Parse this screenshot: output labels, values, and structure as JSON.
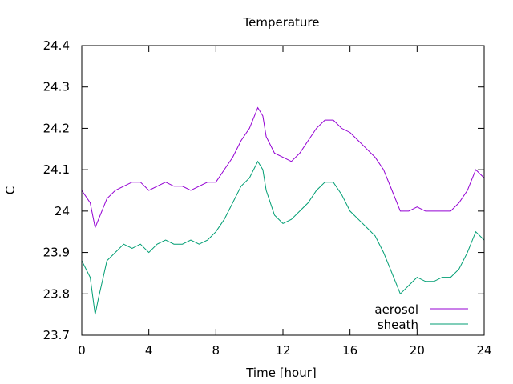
{
  "chart_data": {
    "type": "line",
    "title": "Temperature",
    "xlabel": "Time [hour]",
    "ylabel": "C",
    "xlim": [
      0,
      24
    ],
    "ylim": [
      23.7,
      24.4
    ],
    "xticks": [
      0,
      4,
      8,
      12,
      16,
      20,
      24
    ],
    "xtick_labels": [
      "0",
      "4",
      "8",
      "12",
      "16",
      "20",
      "24"
    ],
    "yticks": [
      23.7,
      23.8,
      23.9,
      24.0,
      24.1,
      24.2,
      24.3,
      24.4
    ],
    "ytick_labels": [
      "23.7",
      "23.8",
      "23.9",
      "24",
      "24.1",
      "24.2",
      "24.3",
      "24.4"
    ],
    "grid": false,
    "legend_position": "bottom-right",
    "series": [
      {
        "name": "aerosol",
        "color": "#9400d3",
        "x": [
          0,
          0.5,
          0.8,
          1.0,
          1.5,
          2.0,
          2.5,
          3.0,
          3.5,
          4.0,
          4.5,
          5.0,
          5.5,
          6.0,
          6.5,
          7.0,
          7.5,
          8.0,
          8.5,
          9.0,
          9.5,
          10.0,
          10.5,
          10.8,
          11.0,
          11.5,
          12.0,
          12.5,
          13.0,
          13.5,
          14.0,
          14.5,
          15.0,
          15.5,
          16.0,
          16.5,
          17.0,
          17.5,
          18.0,
          18.5,
          19.0,
          19.5,
          20.0,
          20.5,
          21.0,
          21.5,
          22.0,
          22.5,
          23.0,
          23.5,
          24.0
        ],
        "y": [
          24.05,
          24.02,
          23.96,
          23.98,
          24.03,
          24.05,
          24.06,
          24.07,
          24.07,
          24.05,
          24.06,
          24.07,
          24.06,
          24.06,
          24.05,
          24.06,
          24.07,
          24.07,
          24.1,
          24.13,
          24.17,
          24.2,
          24.25,
          24.23,
          24.18,
          24.14,
          24.13,
          24.12,
          24.14,
          24.17,
          24.2,
          24.22,
          24.22,
          24.2,
          24.19,
          24.17,
          24.15,
          24.13,
          24.1,
          24.05,
          24.0,
          24.0,
          24.01,
          24.0,
          24.0,
          24.0,
          24.0,
          24.02,
          24.05,
          24.1,
          24.08
        ]
      },
      {
        "name": "sheath",
        "color": "#009e73",
        "x": [
          0,
          0.5,
          0.8,
          1.0,
          1.5,
          2.0,
          2.5,
          3.0,
          3.5,
          4.0,
          4.5,
          5.0,
          5.5,
          6.0,
          6.5,
          7.0,
          7.5,
          8.0,
          8.5,
          9.0,
          9.5,
          10.0,
          10.5,
          10.8,
          11.0,
          11.5,
          12.0,
          12.5,
          13.0,
          13.5,
          14.0,
          14.5,
          15.0,
          15.5,
          16.0,
          16.5,
          17.0,
          17.5,
          18.0,
          18.5,
          19.0,
          19.5,
          20.0,
          20.5,
          21.0,
          21.5,
          22.0,
          22.5,
          23.0,
          23.5,
          24.0
        ],
        "y": [
          23.88,
          23.84,
          23.75,
          23.79,
          23.88,
          23.9,
          23.92,
          23.91,
          23.92,
          23.9,
          23.92,
          23.93,
          23.92,
          23.92,
          23.93,
          23.92,
          23.93,
          23.95,
          23.98,
          24.02,
          24.06,
          24.08,
          24.12,
          24.1,
          24.05,
          23.99,
          23.97,
          23.98,
          24.0,
          24.02,
          24.05,
          24.07,
          24.07,
          24.04,
          24.0,
          23.98,
          23.96,
          23.94,
          23.9,
          23.85,
          23.8,
          23.82,
          23.84,
          23.83,
          23.83,
          23.84,
          23.84,
          23.86,
          23.9,
          23.95,
          23.93
        ]
      }
    ]
  }
}
